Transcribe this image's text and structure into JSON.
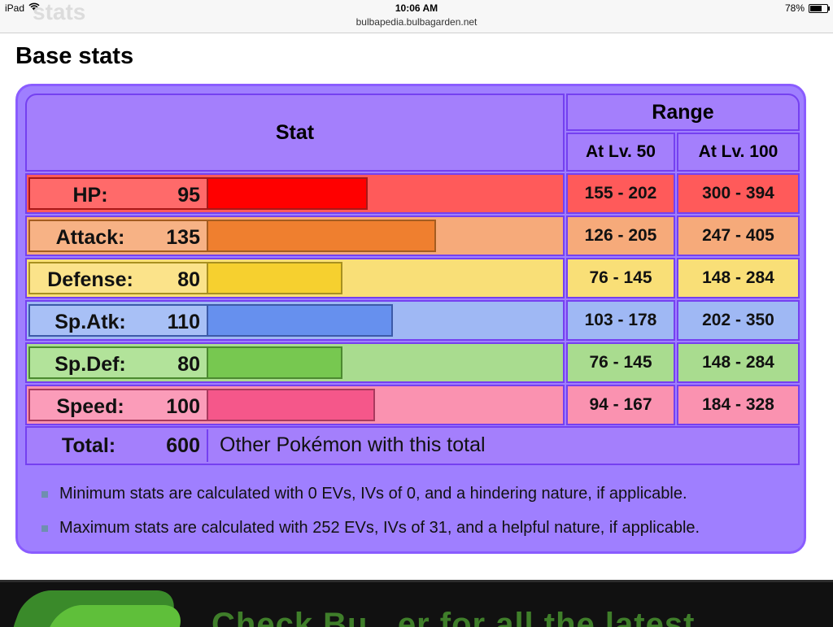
{
  "status_bar": {
    "device": "iPad",
    "time": "10:06 AM",
    "battery": "78%",
    "battery_level": 0.78
  },
  "browser": {
    "url": "bulbapedia.bulbagarden.net",
    "ghost_title": "stats"
  },
  "section_title": "Base stats",
  "table": {
    "stat_header": "Stat",
    "range_header": "Range",
    "lv50_header": "At Lv. 50",
    "lv100_header": "At Lv. 100",
    "rows": [
      {
        "name": "HP:",
        "value": "95",
        "lv50": "155 - 202",
        "lv100": "300 - 394",
        "bar_fraction": 0.45,
        "bg": "#ff5a5a",
        "label_bg": "#ff6a6a",
        "bar": "#ff0000",
        "border": "#a81818"
      },
      {
        "name": "Attack:",
        "value": "135",
        "lv50": "126 - 205",
        "lv100": "247 - 405",
        "bar_fraction": 0.64,
        "bg": "#f6aa7a",
        "label_bg": "#f7b285",
        "bar": "#ef7f2f",
        "border": "#a45c20"
      },
      {
        "name": "Defense:",
        "value": "80",
        "lv50": "76 - 145",
        "lv100": "148 - 284",
        "bar_fraction": 0.38,
        "bg": "#f9df77",
        "label_bg": "#fbe38a",
        "bar": "#f6d02f",
        "border": "#a89020"
      },
      {
        "name": "Sp.Atk:",
        "value": "110",
        "lv50": "103 - 178",
        "lv100": "202 - 350",
        "bar_fraction": 0.52,
        "bg": "#9fb8f4",
        "label_bg": "#a8c0f6",
        "bar": "#6690ee",
        "border": "#3c5aa8"
      },
      {
        "name": "Sp.Def:",
        "value": "80",
        "lv50": "76 - 145",
        "lv100": "148 - 284",
        "bar_fraction": 0.38,
        "bg": "#a9dc8f",
        "label_bg": "#b2e39a",
        "bar": "#77c850",
        "border": "#4c8a30"
      },
      {
        "name": "Speed:",
        "value": "100",
        "lv50": "94 - 167",
        "lv100": "184 - 328",
        "bar_fraction": 0.47,
        "bg": "#fa92b0",
        "label_bg": "#fb9cb9",
        "bar": "#f5578a",
        "border": "#a83a5e"
      }
    ],
    "total_label": "Total:",
    "total_value": "600",
    "total_link": "Other Pokémon with this total",
    "notes": [
      "Minimum stats are calculated with 0 EVs, IVs of 0, and a hindering nature, if applicable.",
      "Maximum stats are calculated with 252 EVs, IVs of 31, and a helpful nature, if applicable."
    ]
  },
  "ad": {
    "text": "Check Bu...er for all the latest"
  },
  "colors": {
    "panel": "#9f7fff",
    "panel_border": "#8a5cff",
    "grid": "#7540f0"
  }
}
